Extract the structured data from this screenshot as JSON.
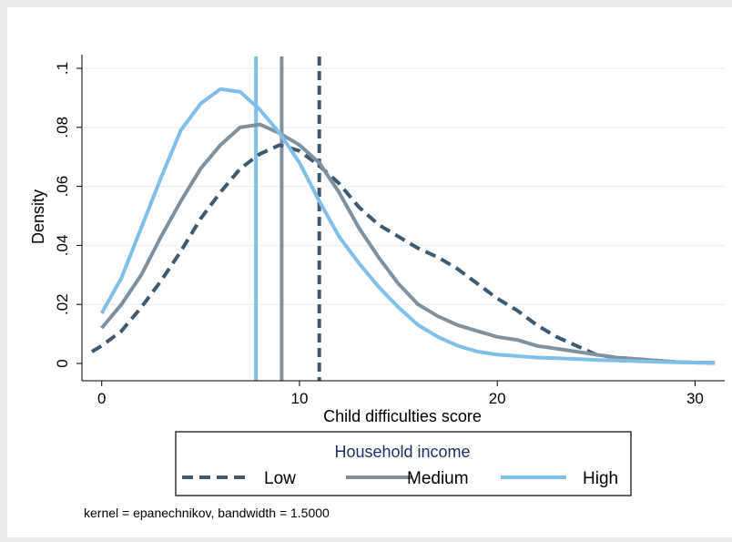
{
  "chart_data": {
    "type": "line",
    "title": "",
    "xlabel": "Child difficulties score",
    "ylabel": "Density",
    "xlim": [
      -1,
      31.5
    ],
    "ylim": [
      0,
      0.1
    ],
    "x_ticks": [
      0,
      10,
      20,
      30
    ],
    "x_tick_labels": [
      "0",
      "10",
      "20",
      "30"
    ],
    "y_ticks": [
      0,
      0.02,
      0.04,
      0.06,
      0.08,
      0.1
    ],
    "y_tick_labels": [
      "0",
      ".02",
      ".04",
      ".06",
      ".08",
      ".1"
    ],
    "grid": "horizontal",
    "legend": {
      "title": "Household income",
      "placement": "bottom",
      "entries": [
        "Low",
        "Medium",
        "High"
      ]
    },
    "note": "kernel = epanechnikov, bandwidth = 1.5000",
    "series": [
      {
        "name": "Low",
        "color": "#3e5a71",
        "dash": "dashed",
        "vline": 11,
        "x": [
          -0.5,
          0,
          1,
          2,
          3,
          4,
          5,
          6,
          7,
          8,
          9,
          10,
          11,
          12,
          13,
          14,
          15,
          16,
          17,
          18,
          19,
          20,
          21,
          22,
          23,
          24,
          25,
          26,
          27,
          28,
          29,
          30,
          31
        ],
        "y": [
          0.004,
          0.006,
          0.011,
          0.019,
          0.028,
          0.038,
          0.049,
          0.058,
          0.066,
          0.071,
          0.074,
          0.072,
          0.067,
          0.061,
          0.053,
          0.047,
          0.043,
          0.039,
          0.036,
          0.032,
          0.027,
          0.022,
          0.018,
          0.013,
          0.009,
          0.006,
          0.003,
          0.002,
          0.0015,
          0.001,
          0.0005,
          0.0003,
          0.0002
        ]
      },
      {
        "name": "Medium",
        "color": "#7f919f",
        "dash": "solid",
        "vline": 9.1,
        "x": [
          0,
          1,
          2,
          3,
          4,
          5,
          6,
          7,
          8,
          9,
          10,
          11,
          12,
          13,
          14,
          15,
          16,
          17,
          18,
          19,
          20,
          21,
          22,
          23,
          24,
          25,
          26,
          27,
          28,
          29,
          30,
          31
        ],
        "y": [
          0.012,
          0.02,
          0.03,
          0.043,
          0.055,
          0.066,
          0.074,
          0.08,
          0.081,
          0.078,
          0.074,
          0.068,
          0.058,
          0.046,
          0.036,
          0.027,
          0.02,
          0.016,
          0.013,
          0.011,
          0.009,
          0.008,
          0.006,
          0.005,
          0.004,
          0.003,
          0.002,
          0.0015,
          0.001,
          0.0005,
          0.0003,
          0.0002
        ]
      },
      {
        "name": "High",
        "color": "#7fbfe8",
        "dash": "solid",
        "vline": 7.8,
        "x": [
          0,
          1,
          2,
          3,
          4,
          5,
          6,
          7,
          8,
          9,
          10,
          11,
          12,
          13,
          14,
          15,
          16,
          17,
          18,
          19,
          20,
          21,
          22,
          23,
          24,
          25,
          26,
          27,
          28,
          29,
          30,
          31
        ],
        "y": [
          0.017,
          0.029,
          0.046,
          0.063,
          0.079,
          0.088,
          0.093,
          0.092,
          0.086,
          0.078,
          0.068,
          0.055,
          0.043,
          0.034,
          0.026,
          0.019,
          0.013,
          0.009,
          0.006,
          0.004,
          0.003,
          0.0025,
          0.002,
          0.0018,
          0.0015,
          0.0012,
          0.001,
          0.0008,
          0.0006,
          0.0004,
          0.0003,
          0.0002
        ]
      }
    ]
  }
}
